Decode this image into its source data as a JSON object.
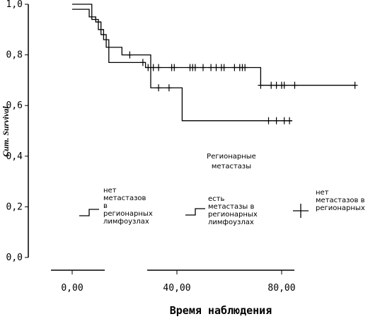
{
  "chart_data": {
    "type": "line",
    "title": "",
    "ylabel": "Cum. Survival",
    "xlabel": "Время наблюдения",
    "xlim": [
      -5,
      88
    ],
    "ylim": [
      0,
      1.0
    ],
    "x_ticks": [
      "0,00",
      "40,00",
      "80,00"
    ],
    "y_ticks": [
      "0,0",
      "0,2",
      "0,4",
      "0,6",
      "0,8",
      "1,0"
    ],
    "legend": {
      "title_lines": [
        "Регионарные",
        "метастазы"
      ],
      "placement": "bottom",
      "entries": [
        {
          "lines": [
            "нет",
            "метастазов",
            "в",
            "регионарных",
            "лимфоузлах"
          ]
        },
        {
          "lines": [
            "есть",
            "метастазы в",
            "регионарных",
            "лимфоузлах"
          ]
        },
        {
          "lines": [
            "нет",
            "метастазов в",
            "регионарных"
          ]
        }
      ]
    },
    "series": [
      {
        "steps": [
          [
            0,
            1.0
          ],
          [
            7.5,
            1.0
          ],
          [
            7.5,
            0.94
          ],
          [
            10,
            0.94
          ],
          [
            10,
            0.9
          ],
          [
            12,
            0.9
          ],
          [
            12,
            0.86
          ],
          [
            14,
            0.86
          ],
          [
            14,
            0.77
          ],
          [
            28,
            0.77
          ],
          [
            28,
            0.75
          ],
          [
            72,
            0.75
          ],
          [
            72,
            0.68
          ],
          [
            108,
            0.68
          ]
        ],
        "censored": [
          27,
          29,
          31,
          33,
          38,
          39,
          45,
          46,
          47,
          50,
          53,
          55,
          57,
          58,
          62,
          64,
          65,
          66,
          72,
          76,
          78,
          80,
          81,
          85,
          108
        ]
      },
      {
        "steps": [
          [
            0,
            0.98
          ],
          [
            6.5,
            0.98
          ],
          [
            6.5,
            0.95
          ],
          [
            9,
            0.95
          ],
          [
            9,
            0.93
          ],
          [
            11,
            0.93
          ],
          [
            11,
            0.88
          ],
          [
            13,
            0.88
          ],
          [
            13,
            0.83
          ],
          [
            19,
            0.83
          ],
          [
            19,
            0.8
          ],
          [
            30,
            0.8
          ],
          [
            30,
            0.67
          ],
          [
            42,
            0.67
          ],
          [
            42,
            0.54
          ],
          [
            84,
            0.54
          ]
        ],
        "censored": [
          22,
          33,
          37,
          75,
          78,
          81,
          83
        ]
      }
    ]
  }
}
